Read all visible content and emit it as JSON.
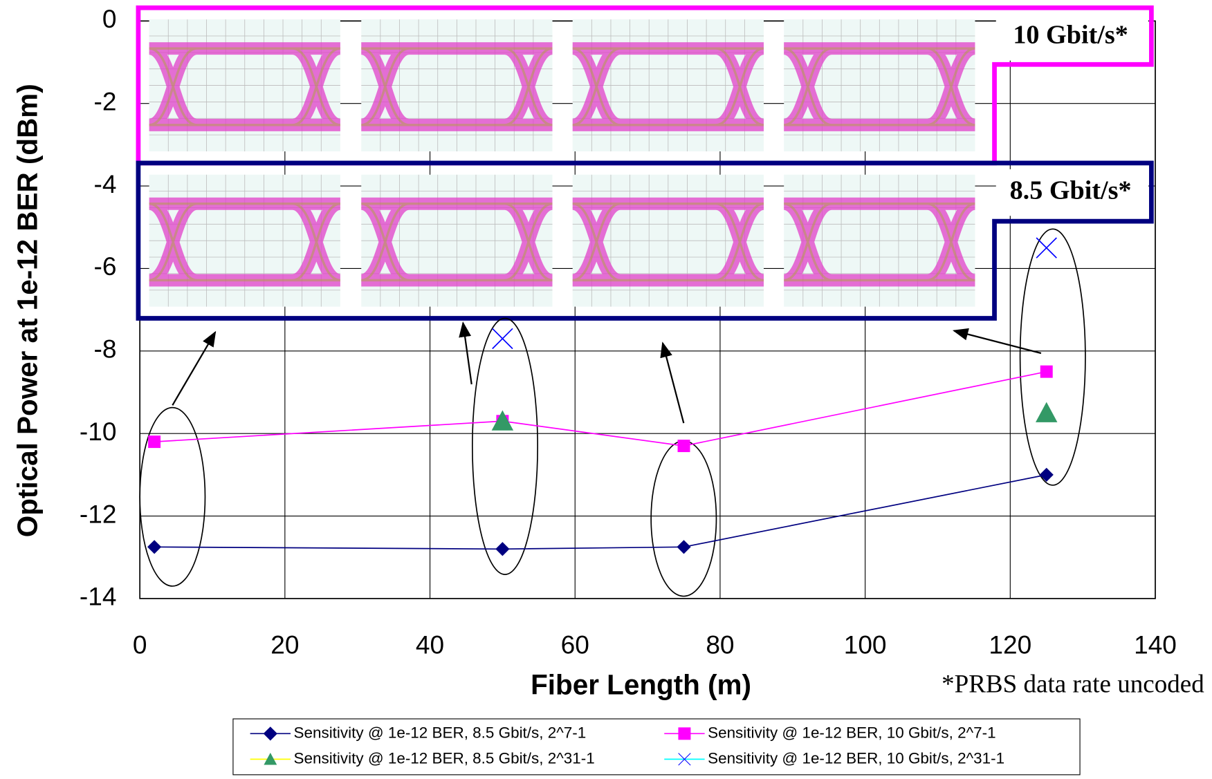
{
  "chart_data": {
    "type": "line",
    "x_label": "Fiber Length (m)",
    "y_label": "Optical Power at 1e-12 BER (dBm)",
    "xlim": [
      0,
      140
    ],
    "xticks": [
      0,
      20,
      40,
      60,
      80,
      100,
      120,
      140
    ],
    "ylim": [
      -14,
      0
    ],
    "yticks": [
      -14,
      -12,
      -10,
      -8,
      -6,
      -4,
      -2,
      0
    ],
    "grid": true,
    "legend_position": "bottom",
    "series": [
      {
        "name": "Sensitivity @ 1e-12 BER, 8.5 Gbit/s, 2^7-1",
        "color": "#000080",
        "marker": "diamond",
        "marker_color": "#000080",
        "line": true,
        "x": [
          2,
          50,
          75,
          125
        ],
        "values": [
          -12.75,
          -12.8,
          -12.75,
          -11
        ]
      },
      {
        "name": "Sensitivity @ 1e-12 BER, 10 Gbit/s, 2^7-1",
        "color": "#ff00ff",
        "marker": "square",
        "marker_color": "#ff00ff",
        "line": true,
        "x": [
          2,
          50,
          75,
          125
        ],
        "values": [
          -10.2,
          -9.7,
          -10.3,
          -8.5
        ]
      },
      {
        "name": "Sensitivity @ 1e-12 BER, 8.5 Gbit/s, 2^31-1",
        "color": "#ffff00",
        "marker": "triangle",
        "marker_color": "#339966",
        "line": false,
        "x": [
          50,
          125
        ],
        "values": [
          -9.7,
          -9.5
        ]
      },
      {
        "name": "Sensitivity @ 1e-12 BER, 10 Gbit/s, 2^31-1",
        "color": "#00ffff",
        "marker": "x",
        "marker_color": "#0000ff",
        "line": false,
        "x": [
          50,
          125
        ],
        "values": [
          -7.7,
          -5.5
        ]
      }
    ],
    "annotations": [
      "10 Gbit/s*",
      "8.5 Gbit/s*",
      "*PRBS data rate uncoded"
    ]
  }
}
